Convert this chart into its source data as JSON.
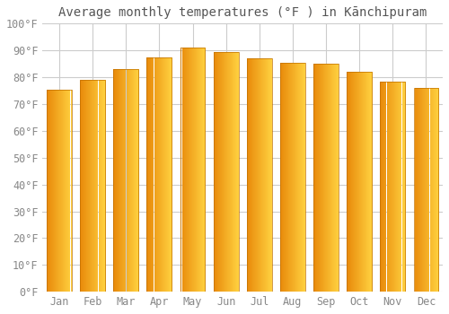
{
  "title": "Average monthly temperatures (°F ) in Kānchipuram",
  "months": [
    "Jan",
    "Feb",
    "Mar",
    "Apr",
    "May",
    "Jun",
    "Jul",
    "Aug",
    "Sep",
    "Oct",
    "Nov",
    "Dec"
  ],
  "values": [
    75.5,
    79.0,
    83.0,
    87.5,
    91.0,
    89.5,
    87.0,
    85.5,
    85.0,
    82.0,
    78.5,
    76.0
  ],
  "bar_color_left": "#E8890A",
  "bar_color_right": "#FFD040",
  "bar_edge_color": "#C07000",
  "ylim": [
    0,
    100
  ],
  "yticks": [
    0,
    10,
    20,
    30,
    40,
    50,
    60,
    70,
    80,
    90,
    100
  ],
  "ytick_labels": [
    "0°F",
    "10°F",
    "20°F",
    "30°F",
    "40°F",
    "50°F",
    "60°F",
    "70°F",
    "80°F",
    "90°F",
    "100°F"
  ],
  "background_color": "#FFFFFF",
  "grid_color": "#CCCCCC",
  "title_fontsize": 10,
  "tick_fontsize": 8.5,
  "font_family": "monospace",
  "tick_color": "#888888"
}
